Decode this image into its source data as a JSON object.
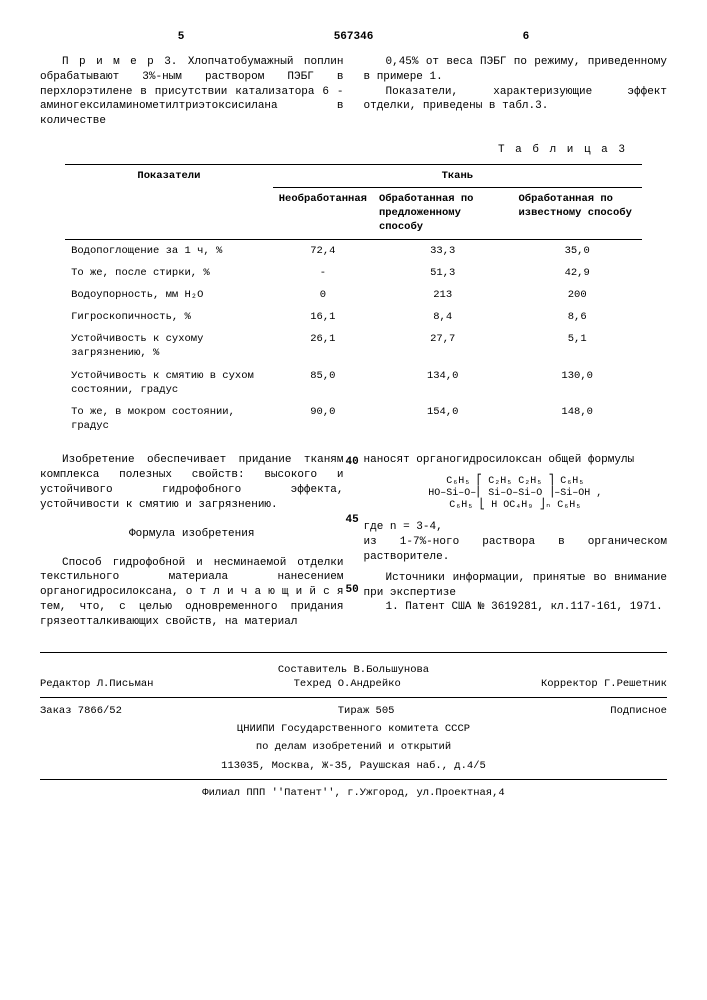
{
  "header": {
    "page_left": "5",
    "doc_number": "567346",
    "page_right": "6"
  },
  "intro": {
    "left": "П р и м е р  3. Хлопчатобумажный поплин обрабатывают 3%-ным раствором ПЭБГ в перхлорэтилене в присутствии катализатора 6 - аминогексиламинометилтриэтоксисилана в количестве",
    "right1": "0,45% от веса ПЭБГ по режиму, приведенному в примере 1.",
    "right2": "Показатели, характеризующие эффект отделки, приведены в табл.3."
  },
  "table": {
    "caption": "Т а б л и ц а  3",
    "header_main": "Показатели",
    "header_group": "Ткань",
    "col1": "Необработанная",
    "col2": "Обработанная по предложенному способу",
    "col3": "Обработанная по известному способу",
    "rows": [
      {
        "label": "Водопоглощение за 1 ч, %",
        "v1": "72,4",
        "v2": "33,3",
        "v3": "35,0"
      },
      {
        "label": "То же, после стирки, %",
        "v1": "-",
        "v2": "51,3",
        "v3": "42,9"
      },
      {
        "label": "Водоупорность, мм H₂O",
        "v1": "0",
        "v2": "213",
        "v3": "200"
      },
      {
        "label": "Гигроскопичность, %",
        "v1": "16,1",
        "v2": "8,4",
        "v3": "8,6"
      },
      {
        "label": "Устойчивость к сухому загрязнению, %",
        "v1": "26,1",
        "v2": "27,7",
        "v3": "5,1"
      },
      {
        "label": "Устойчивость к смятию в сухом состоянии, градус",
        "v1": "85,0",
        "v2": "134,0",
        "v3": "130,0"
      },
      {
        "label": "То же, в мокром состоянии, градус",
        "v1": "90,0",
        "v2": "154,0",
        "v3": "148,0"
      }
    ]
  },
  "body": {
    "left_p1": "Изобретение обеспечивает придание тканям комплекса полезных свойств: высокого и устойчивого гидрофобного эффекта, устойчивости к смятию и загрязнению.",
    "claim_title": "Формула изобретения",
    "left_p2": "Способ гидрофобной и несминаемой отделки текстильного материала нанесением органогидросилоксана, о т л и ч а ю щ и й с я  тем, что, с целью одновременного придания грязеотталкивающих свойств, на материал",
    "right_p1": "наносят органогидросилоксан общей формулы",
    "formula_l1": "C₆H₅ ⎡ C₂H₅   C₂H₅ ⎤ C₆H₅",
    "formula_l2": "HO–Si–O–⎢ Si–O–Si–O ⎥–Si–OH ,",
    "formula_l3": "C₆H₅ ⎣ H   OC₄H₉ ⎦ₙ C₆H₅",
    "right_p2": "где n = 3-4,\nиз 1-7%-ного раствора в органическом растворителе.",
    "right_p3": "Источники информации, принятые во внимание при экспертизе",
    "right_p4": "1. Патент США № 3619281, кл.117-161, 1971.",
    "marker40": "40",
    "marker45": "45",
    "marker50": "50"
  },
  "footer": {
    "compiler": "Составитель В.Большунова",
    "editor": "Редактор Л.Письман",
    "techred": "Техред О.Андрейко",
    "corrector": "Корректор Г.Решетник",
    "order": "Заказ 7866/52",
    "tirage": "Тираж 505",
    "subscription": "Подписное",
    "org1": "ЦНИИПИ Государственного комитета СССР",
    "org2": "по делам изобретений и открытий",
    "addr1": "113035, Москва, Ж-35, Раушская наб., д.4/5",
    "branch": "Филиал ППП ''Патент'', г.Ужгород, ул.Проектная,4"
  }
}
